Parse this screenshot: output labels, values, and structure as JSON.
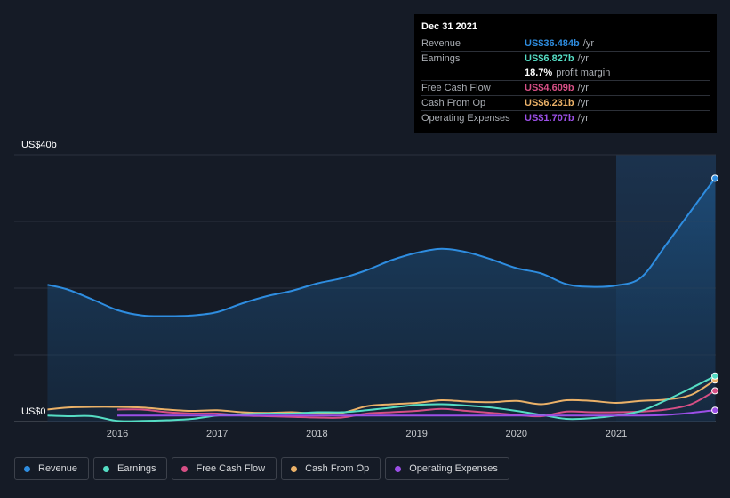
{
  "chart_data": {
    "type": "area",
    "y_axis": {
      "top_label": "US$40b",
      "bottom_label": "US$0",
      "ylim": [
        0,
        40
      ]
    },
    "x_ticks": [
      "2016",
      "2017",
      "2018",
      "2019",
      "2020",
      "2021"
    ],
    "x_range": [
      2015.3,
      2021.99
    ],
    "highlight_start": 2021.0,
    "series": [
      {
        "name": "Revenue",
        "color": "#2e8de0",
        "fill": true,
        "x": [
          2015.3,
          2015.5,
          2015.75,
          2016.0,
          2016.25,
          2016.5,
          2016.75,
          2017.0,
          2017.25,
          2017.5,
          2017.75,
          2018.0,
          2018.25,
          2018.5,
          2018.75,
          2019.0,
          2019.25,
          2019.5,
          2019.75,
          2020.0,
          2020.25,
          2020.5,
          2020.75,
          2021.0,
          2021.25,
          2021.5,
          2021.75,
          2021.99
        ],
        "y": [
          20.5,
          19.8,
          18.3,
          16.7,
          15.9,
          15.8,
          15.9,
          16.4,
          17.7,
          18.8,
          19.6,
          20.7,
          21.5,
          22.7,
          24.2,
          25.3,
          25.9,
          25.4,
          24.3,
          23.0,
          22.2,
          20.6,
          20.2,
          20.4,
          21.6,
          26.5,
          31.6,
          36.484
        ]
      },
      {
        "name": "Earnings",
        "color": "#55ddc4",
        "x": [
          2015.3,
          2015.5,
          2015.75,
          2016.0,
          2016.25,
          2016.5,
          2016.75,
          2017.0,
          2017.25,
          2017.5,
          2017.75,
          2018.0,
          2018.25,
          2018.5,
          2018.75,
          2019.0,
          2019.25,
          2019.5,
          2019.75,
          2020.0,
          2020.25,
          2020.5,
          2020.75,
          2021.0,
          2021.25,
          2021.5,
          2021.75,
          2021.99
        ],
        "y": [
          0.9,
          0.8,
          0.8,
          0.1,
          0.1,
          0.2,
          0.4,
          0.9,
          1.1,
          1.2,
          1.2,
          1.4,
          1.4,
          1.7,
          2.1,
          2.5,
          2.6,
          2.4,
          2.1,
          1.6,
          1.0,
          0.4,
          0.5,
          0.9,
          1.6,
          3.2,
          5.0,
          6.827
        ]
      },
      {
        "name": "Free Cash Flow",
        "color": "#d64f85",
        "x": [
          2016.0,
          2016.25,
          2016.5,
          2016.75,
          2017.0,
          2017.25,
          2017.5,
          2017.75,
          2018.0,
          2018.25,
          2018.5,
          2018.75,
          2019.0,
          2019.25,
          2019.5,
          2019.75,
          2020.0,
          2020.25,
          2020.5,
          2020.75,
          2021.0,
          2021.25,
          2021.5,
          2021.75,
          2021.99
        ],
        "y": [
          1.8,
          1.8,
          1.4,
          1.2,
          1.2,
          0.9,
          0.8,
          0.7,
          0.6,
          0.6,
          1.2,
          1.4,
          1.6,
          1.9,
          1.6,
          1.3,
          1.0,
          0.8,
          1.5,
          1.4,
          1.4,
          1.5,
          1.8,
          2.6,
          4.609
        ]
      },
      {
        "name": "Cash From Op",
        "color": "#ebb168",
        "x": [
          2015.3,
          2015.5,
          2015.75,
          2016.0,
          2016.25,
          2016.5,
          2016.75,
          2017.0,
          2017.25,
          2017.5,
          2017.75,
          2018.0,
          2018.25,
          2018.5,
          2018.75,
          2019.0,
          2019.25,
          2019.5,
          2019.75,
          2020.0,
          2020.25,
          2020.5,
          2020.75,
          2021.0,
          2021.25,
          2021.5,
          2021.75,
          2021.99
        ],
        "y": [
          1.8,
          2.1,
          2.2,
          2.2,
          2.1,
          1.8,
          1.6,
          1.7,
          1.4,
          1.3,
          1.4,
          1.2,
          1.3,
          2.3,
          2.6,
          2.8,
          3.2,
          3.0,
          2.9,
          3.1,
          2.6,
          3.2,
          3.1,
          2.8,
          3.1,
          3.3,
          4.0,
          6.231
        ]
      },
      {
        "name": "Operating Expenses",
        "color": "#9b4fe6",
        "x": [
          2016.0,
          2016.25,
          2016.5,
          2016.75,
          2017.0,
          2017.25,
          2017.5,
          2017.75,
          2018.0,
          2018.25,
          2018.5,
          2018.75,
          2019.0,
          2019.25,
          2019.5,
          2019.75,
          2020.0,
          2020.25,
          2020.5,
          2020.75,
          2021.0,
          2021.25,
          2021.5,
          2021.75,
          2021.99
        ],
        "y": [
          0.9,
          0.9,
          0.9,
          0.9,
          0.9,
          0.9,
          0.9,
          0.9,
          0.9,
          0.9,
          0.9,
          0.9,
          0.9,
          0.9,
          0.9,
          0.9,
          0.9,
          0.9,
          0.9,
          0.9,
          0.9,
          0.9,
          1.0,
          1.3,
          1.707
        ]
      }
    ]
  },
  "tooltip": {
    "date": "Dec 31 2021",
    "rows": [
      {
        "label": "Revenue",
        "value": "US$36.484b",
        "unit": "/yr",
        "color": "#2e8de0"
      },
      {
        "label": "Earnings",
        "value": "US$6.827b",
        "unit": "/yr",
        "color": "#55ddc4"
      },
      {
        "label": "",
        "value": "18.7%",
        "unit": "profit margin",
        "color": "#ffffff"
      },
      {
        "label": "Free Cash Flow",
        "value": "US$4.609b",
        "unit": "/yr",
        "color": "#d64f85"
      },
      {
        "label": "Cash From Op",
        "value": "US$6.231b",
        "unit": "/yr",
        "color": "#ebb168"
      },
      {
        "label": "Operating Expenses",
        "value": "US$1.707b",
        "unit": "/yr",
        "color": "#9b4fe6"
      }
    ]
  },
  "legend": [
    {
      "label": "Revenue",
      "color": "#2e8de0"
    },
    {
      "label": "Earnings",
      "color": "#55ddc4"
    },
    {
      "label": "Free Cash Flow",
      "color": "#d64f85"
    },
    {
      "label": "Cash From Op",
      "color": "#ebb168"
    },
    {
      "label": "Operating Expenses",
      "color": "#9b4fe6"
    }
  ]
}
